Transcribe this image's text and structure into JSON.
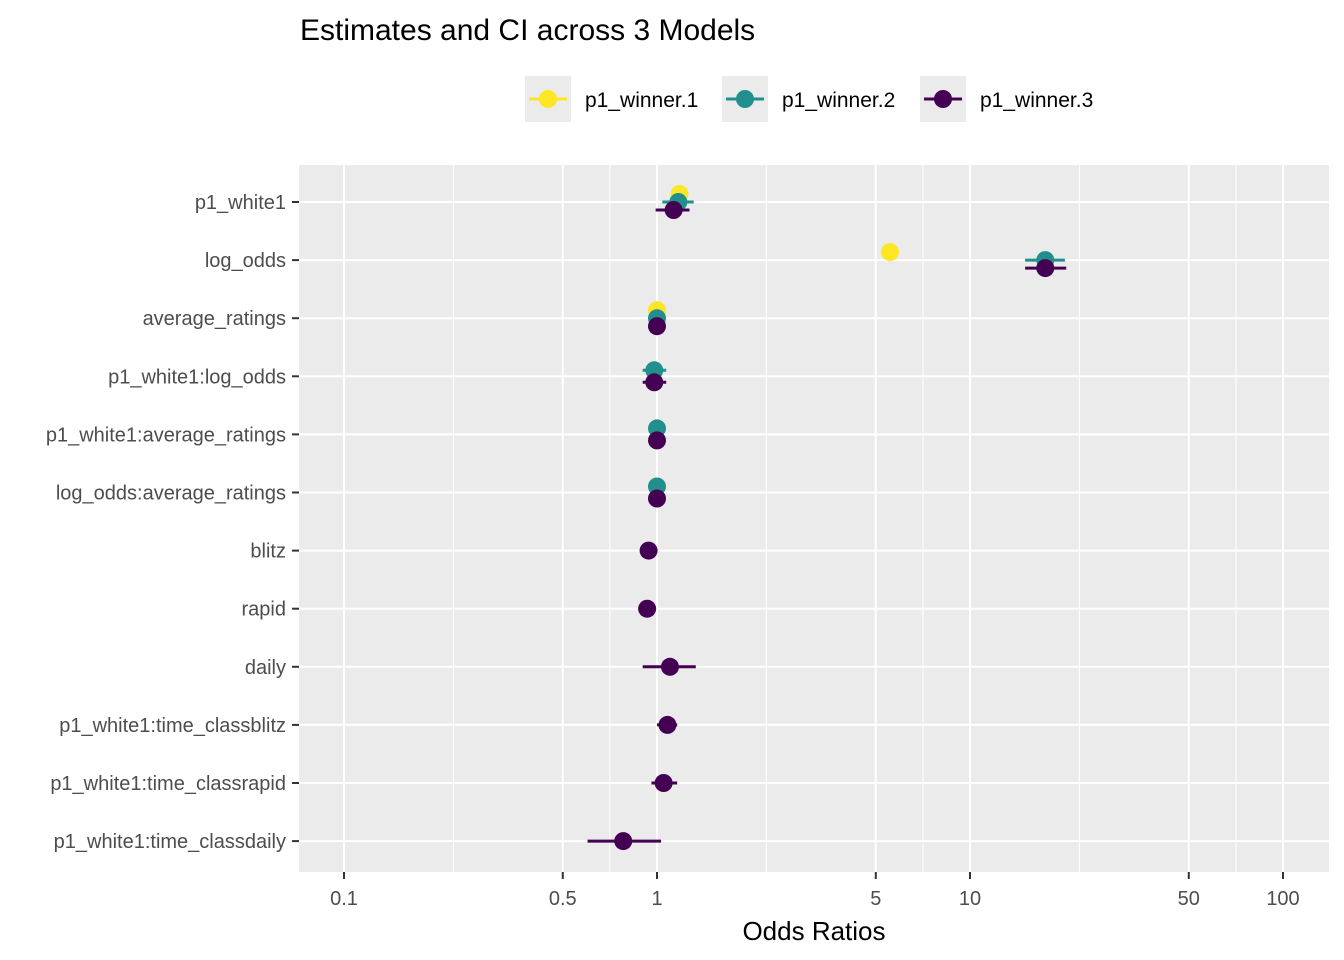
{
  "chart_data": {
    "type": "scatter",
    "subtype": "dot-and-whisker (point estimate with confidence interval)",
    "title": "Estimates and CI across 3 Models",
    "xlabel": "Odds Ratios",
    "ylabel": "",
    "x_scale": "log10",
    "xlim": [
      0.085,
      140
    ],
    "x_ticks": [
      0.1,
      0.5,
      1,
      5,
      10,
      50,
      100
    ],
    "x_tick_labels": [
      "0.1",
      "0.5",
      "1",
      "5",
      "10",
      "50",
      "100"
    ],
    "grid": true,
    "legend_position": "top",
    "categories": [
      "p1_white1",
      "log_odds",
      "average_ratings",
      "p1_white1:log_odds",
      "p1_white1:average_ratings",
      "log_odds:average_ratings",
      "blitz",
      "rapid",
      "daily",
      "p1_white1:time_classblitz",
      "p1_white1:time_classrapid",
      "p1_white1:time_classdaily"
    ],
    "series": [
      {
        "name": "p1_winner.1",
        "color": "#FDE725",
        "points": [
          {
            "term": "p1_white1",
            "estimate": 1.18,
            "ci_low": 1.15,
            "ci_high": 1.21
          },
          {
            "term": "log_odds",
            "estimate": 5.55,
            "ci_low": 5.45,
            "ci_high": 5.65
          },
          {
            "term": "average_ratings",
            "estimate": 1.0,
            "ci_low": 1.0,
            "ci_high": 1.0
          }
        ]
      },
      {
        "name": "p1_winner.2",
        "color": "#21908C",
        "points": [
          {
            "term": "p1_white1",
            "estimate": 1.17,
            "ci_low": 1.04,
            "ci_high": 1.31
          },
          {
            "term": "log_odds",
            "estimate": 17.4,
            "ci_low": 15.0,
            "ci_high": 20.1
          },
          {
            "term": "average_ratings",
            "estimate": 1.0,
            "ci_low": 1.0,
            "ci_high": 1.0
          },
          {
            "term": "p1_white1:log_odds",
            "estimate": 0.98,
            "ci_low": 0.9,
            "ci_high": 1.07
          },
          {
            "term": "p1_white1:average_ratings",
            "estimate": 1.0,
            "ci_low": 1.0,
            "ci_high": 1.0
          },
          {
            "term": "log_odds:average_ratings",
            "estimate": 1.0,
            "ci_low": 1.0,
            "ci_high": 1.0
          }
        ]
      },
      {
        "name": "p1_winner.3",
        "color": "#440154",
        "points": [
          {
            "term": "p1_white1",
            "estimate": 1.13,
            "ci_low": 0.99,
            "ci_high": 1.27
          },
          {
            "term": "log_odds",
            "estimate": 17.4,
            "ci_low": 15.0,
            "ci_high": 20.3
          },
          {
            "term": "average_ratings",
            "estimate": 1.0,
            "ci_low": 1.0,
            "ci_high": 1.0
          },
          {
            "term": "p1_white1:log_odds",
            "estimate": 0.98,
            "ci_low": 0.9,
            "ci_high": 1.07
          },
          {
            "term": "p1_white1:average_ratings",
            "estimate": 1.0,
            "ci_low": 1.0,
            "ci_high": 1.0
          },
          {
            "term": "log_odds:average_ratings",
            "estimate": 1.0,
            "ci_low": 1.0,
            "ci_high": 1.0
          },
          {
            "term": "blitz",
            "estimate": 0.94,
            "ci_low": 0.93,
            "ci_high": 0.95
          },
          {
            "term": "rapid",
            "estimate": 0.93,
            "ci_low": 0.92,
            "ci_high": 0.94
          },
          {
            "term": "daily",
            "estimate": 1.1,
            "ci_low": 0.9,
            "ci_high": 1.33
          },
          {
            "term": "p1_white1:time_classblitz",
            "estimate": 1.08,
            "ci_low": 1.0,
            "ci_high": 1.16
          },
          {
            "term": "p1_white1:time_classrapid",
            "estimate": 1.05,
            "ci_low": 0.96,
            "ci_high": 1.16
          },
          {
            "term": "p1_white1:time_classdaily",
            "estimate": 0.78,
            "ci_low": 0.6,
            "ci_high": 1.03
          }
        ]
      }
    ]
  },
  "colors": {
    "panel_background": "#EBEBEB",
    "grid_line": "#FFFFFF",
    "tick_text": "#4D4D4D",
    "tick_mark": "#333333"
  }
}
